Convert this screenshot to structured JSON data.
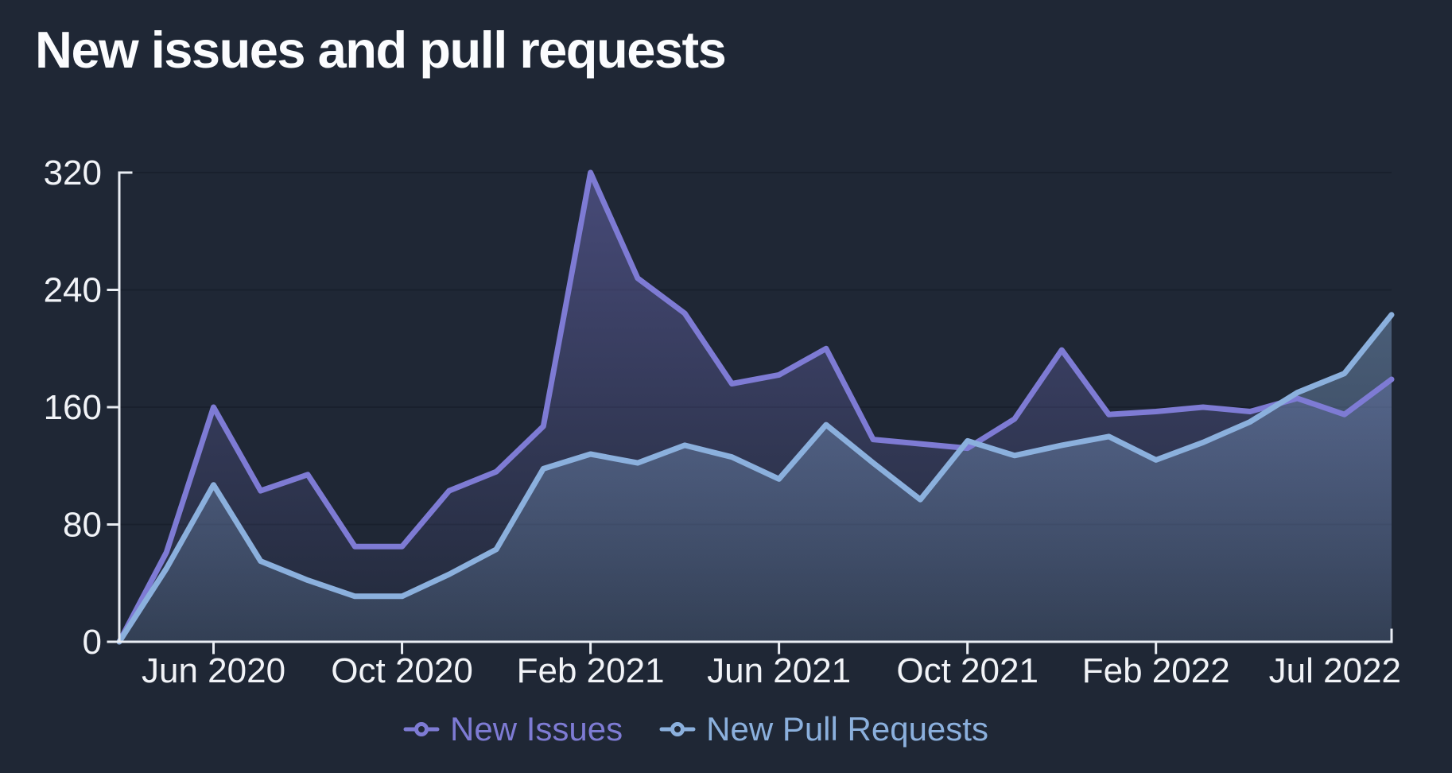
{
  "page": {
    "title": "New issues and pull requests",
    "background": "#1f2735"
  },
  "chart_data": {
    "type": "area",
    "title": "New issues and pull requests",
    "x": [
      "Apr 2020",
      "May 2020",
      "Jun 2020",
      "Jul 2020",
      "Aug 2020",
      "Sep 2020",
      "Oct 2020",
      "Nov 2020",
      "Dec 2020",
      "Jan 2021",
      "Feb 2021",
      "Mar 2021",
      "Apr 2021",
      "May 2021",
      "Jun 2021",
      "Jul 2021",
      "Aug 2021",
      "Sep 2021",
      "Oct 2021",
      "Nov 2021",
      "Dec 2021",
      "Jan 2022",
      "Feb 2022",
      "Mar 2022",
      "Apr 2022",
      "May 2022",
      "Jun 2022",
      "Jul 2022"
    ],
    "series": [
      {
        "name": "New Issues",
        "color": "#7e7bd4",
        "values": [
          0,
          61,
          160,
          103,
          114,
          65,
          65,
          103,
          116,
          147,
          320,
          248,
          224,
          176,
          182,
          200,
          138,
          135,
          132,
          152,
          199,
          155,
          157,
          160,
          157,
          166,
          155,
          179
        ]
      },
      {
        "name": "New Pull Requests",
        "color": "#8bb0dd",
        "values": [
          0,
          50,
          107,
          55,
          42,
          31,
          31,
          46,
          63,
          118,
          128,
          122,
          134,
          126,
          111,
          148,
          122,
          97,
          137,
          127,
          134,
          140,
          124,
          136,
          150,
          170,
          183,
          223
        ]
      }
    ],
    "ylim": [
      0,
      320
    ],
    "yticks": [
      0,
      80,
      160,
      240,
      320
    ],
    "xtick_labels": [
      "Jun 2020",
      "Oct 2020",
      "Feb 2021",
      "Jun 2021",
      "Oct 2021",
      "Feb 2022",
      "Jul 2022"
    ],
    "xtick_indices": [
      2,
      6,
      10,
      14,
      18,
      22,
      27
    ],
    "grid": "horizontal-only",
    "legend_position": "bottom-center",
    "colors": {
      "axis": "#e9edf3",
      "gridline": "#19202d",
      "tick_label": "#f1f3f7"
    }
  }
}
